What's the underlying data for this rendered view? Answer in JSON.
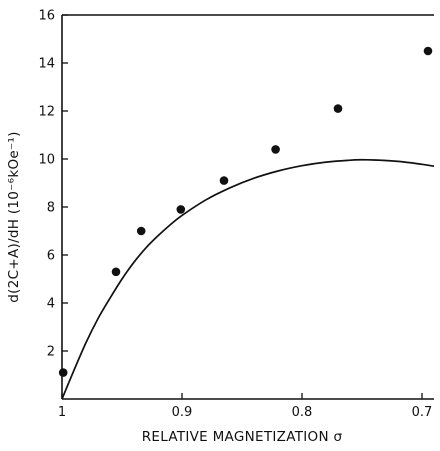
{
  "chart_data": {
    "type": "scatter",
    "xlabel": "RELATIVE  MAGNETIZATION σ",
    "ylabel": "d(2C+A)/dH (10⁻⁶kOe⁻¹)",
    "xlim": [
      1.0,
      0.69
    ],
    "ylim": [
      0,
      16
    ],
    "x_reversed": true,
    "x_ticks": [
      1,
      0.9,
      0.8,
      0.7
    ],
    "x_tick_labels": [
      "1",
      "0.9",
      "0.8",
      "0.7"
    ],
    "y_ticks": [
      2,
      4,
      6,
      8,
      10,
      12,
      14,
      16
    ],
    "y_tick_labels": [
      "2",
      "4",
      "6",
      "8",
      "10",
      "12",
      "14",
      "16"
    ],
    "grid": false,
    "series": [
      {
        "kind": "points",
        "marker": "filled-circle",
        "x": [
          0.999,
          0.955,
          0.934,
          0.901,
          0.865,
          0.822,
          0.77,
          0.695
        ],
        "y": [
          1.1,
          5.3,
          7.0,
          7.9,
          9.1,
          10.4,
          12.1,
          14.5
        ]
      },
      {
        "kind": "line",
        "x": [
          1.0,
          0.99,
          0.98,
          0.97,
          0.96,
          0.95,
          0.94,
          0.93,
          0.92,
          0.91,
          0.9,
          0.88,
          0.86,
          0.84,
          0.82,
          0.8,
          0.78,
          0.76,
          0.75,
          0.74,
          0.72,
          0.7,
          0.69
        ],
        "y": [
          0.0,
          1.2,
          2.35,
          3.35,
          4.2,
          5.0,
          5.7,
          6.3,
          6.8,
          7.25,
          7.65,
          8.3,
          8.8,
          9.2,
          9.5,
          9.72,
          9.87,
          9.95,
          9.97,
          9.96,
          9.9,
          9.78,
          9.7
        ]
      }
    ]
  }
}
